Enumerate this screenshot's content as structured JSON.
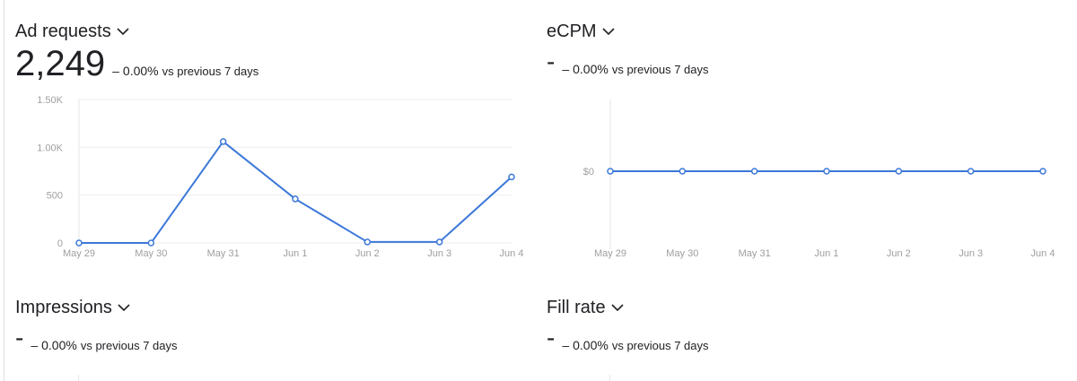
{
  "colors": {
    "line": "#3c78d8",
    "grid": "#eeeeee",
    "axis_text": "#9e9e9e"
  },
  "icons": {
    "dropdown": "chevron-down-icon"
  },
  "cards": {
    "ad_requests": {
      "title": "Ad requests",
      "value": "2,249",
      "delta_dash": "–",
      "delta_pct": "0.00%",
      "delta_text": "vs previous 7 days"
    },
    "ecpm": {
      "title": "eCPM",
      "value": "-",
      "delta_dash": "–",
      "delta_pct": "0.00%",
      "delta_text": "vs previous 7 days"
    },
    "impressions": {
      "title": "Impressions",
      "value": "-",
      "delta_dash": "–",
      "delta_pct": "0.00%",
      "delta_text": "vs previous 7 days"
    },
    "fill_rate": {
      "title": "Fill rate",
      "value": "-",
      "delta_dash": "–",
      "delta_pct": "0.00%",
      "delta_text": "vs previous 7 days"
    }
  },
  "chart_data": [
    {
      "type": "line",
      "categories": [
        "May 29",
        "May 30",
        "May 31",
        "Jun 1",
        "Jun 2",
        "Jun 3",
        "Jun 4"
      ],
      "series": [
        {
          "values": [
            0,
            0,
            1060,
            460,
            10,
            10,
            690
          ]
        }
      ],
      "yticks": [
        0,
        500,
        1000,
        1500
      ],
      "ytick_labels": [
        "0",
        "500",
        "1.00K",
        "1.50K"
      ],
      "ylim": [
        0,
        1500
      ],
      "grid": true
    },
    {
      "type": "line",
      "categories": [
        "May 29",
        "May 30",
        "May 31",
        "Jun 1",
        "Jun 2",
        "Jun 3",
        "Jun 4"
      ],
      "series": [
        {
          "values": [
            0,
            0,
            0,
            0,
            0,
            0,
            0
          ]
        }
      ],
      "yticks": [
        0
      ],
      "ytick_labels": [
        "$0"
      ],
      "grid": false
    }
  ]
}
